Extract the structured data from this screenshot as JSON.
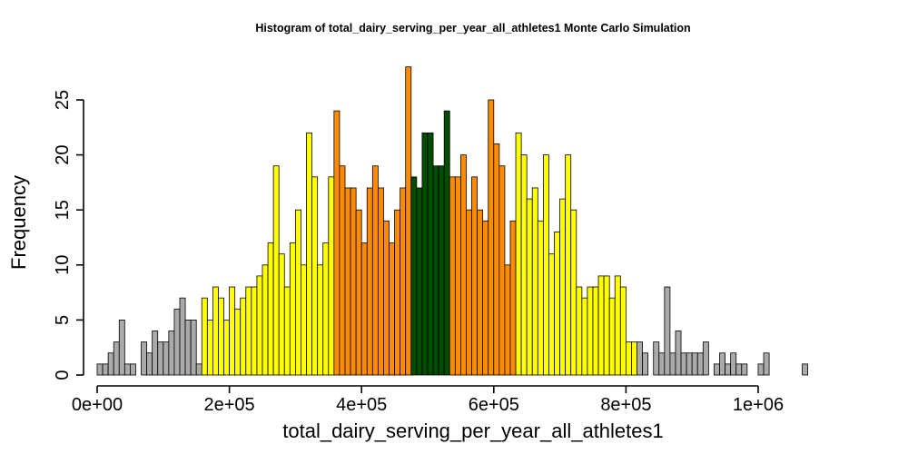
{
  "chart_data": {
    "type": "bar",
    "title": "Histogram of  total_dairy_serving_per_year_all_athletes1  Monte Carlo Simulation",
    "xlabel": "total_dairy_serving_per_year_all_athletes1",
    "ylabel": "Frequency",
    "xlim": [
      0,
      1140000
    ],
    "ylim": [
      0,
      28
    ],
    "bin_start": 0,
    "bin_width": 8333,
    "x_ticks": [
      0,
      200000,
      400000,
      600000,
      800000,
      1000000
    ],
    "x_tick_labels": [
      "0e+00",
      "2e+05",
      "4e+05",
      "6e+05",
      "8e+05",
      "1e+06"
    ],
    "y_ticks": [
      0,
      5,
      10,
      15,
      20,
      25
    ],
    "y_tick_labels": [
      "0",
      "5",
      "10",
      "15",
      "20",
      "25"
    ],
    "grid": false,
    "legend": "none",
    "values": [
      1,
      1,
      2,
      3,
      5,
      1,
      1,
      0,
      3,
      2,
      4,
      3,
      3,
      4,
      6,
      7,
      5,
      5,
      1,
      7,
      5,
      8,
      7,
      5,
      8,
      6,
      7,
      8,
      8,
      9,
      10,
      12,
      19,
      11,
      8,
      12,
      15,
      10,
      22,
      18,
      10,
      12,
      18,
      24,
      19,
      17,
      17,
      15,
      12,
      17,
      19,
      17,
      14,
      12,
      15,
      17,
      28,
      18,
      17,
      22,
      22,
      19,
      19,
      24,
      18,
      18,
      20,
      15,
      18,
      15,
      14,
      25,
      21,
      19,
      10,
      14,
      22,
      20,
      16,
      17,
      14,
      20,
      11,
      13,
      16,
      20,
      15,
      8,
      7,
      8,
      8,
      9,
      9,
      7,
      9,
      8,
      3,
      3,
      3,
      2,
      0,
      3,
      2,
      8,
      2,
      4,
      2,
      2,
      2,
      2,
      3,
      0,
      1,
      2,
      1,
      2,
      1,
      1,
      0,
      0,
      1,
      2,
      0,
      0,
      0,
      0,
      0,
      0,
      1
    ],
    "color_bands": [
      {
        "name": "gray",
        "color": "#aaaaaa",
        "from_bin": 0,
        "to_bin": 18
      },
      {
        "name": "yellow",
        "color": "#ffff00",
        "from_bin": 19,
        "to_bin": 42
      },
      {
        "name": "orange",
        "color": "#ff8c00",
        "from_bin": 43,
        "to_bin": 56
      },
      {
        "name": "darkgreen",
        "color": "#004d00",
        "from_bin": 57,
        "to_bin": 63
      },
      {
        "name": "orange",
        "color": "#ff8c00",
        "from_bin": 64,
        "to_bin": 75
      },
      {
        "name": "yellow",
        "color": "#ffff00",
        "from_bin": 76,
        "to_bin": 97
      },
      {
        "name": "gray",
        "color": "#aaaaaa",
        "from_bin": 98,
        "to_bin": 137
      }
    ]
  }
}
